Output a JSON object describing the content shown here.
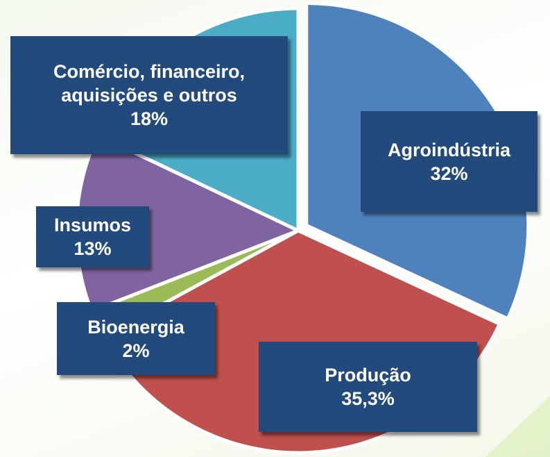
{
  "chart_data": {
    "type": "pie",
    "categories": [
      "Agroindústria",
      "Produção",
      "Bioenergia",
      "Insumos",
      "Comércio, financeiro, aquisições e outros"
    ],
    "values": [
      32,
      35.3,
      2,
      13,
      18
    ],
    "value_labels": [
      "32%",
      "35,3%",
      "2%",
      "13%",
      "18%"
    ],
    "colors": [
      "#4f81bd",
      "#c0504d",
      "#9bbb59",
      "#8064a2",
      "#4bacc6"
    ]
  }
}
